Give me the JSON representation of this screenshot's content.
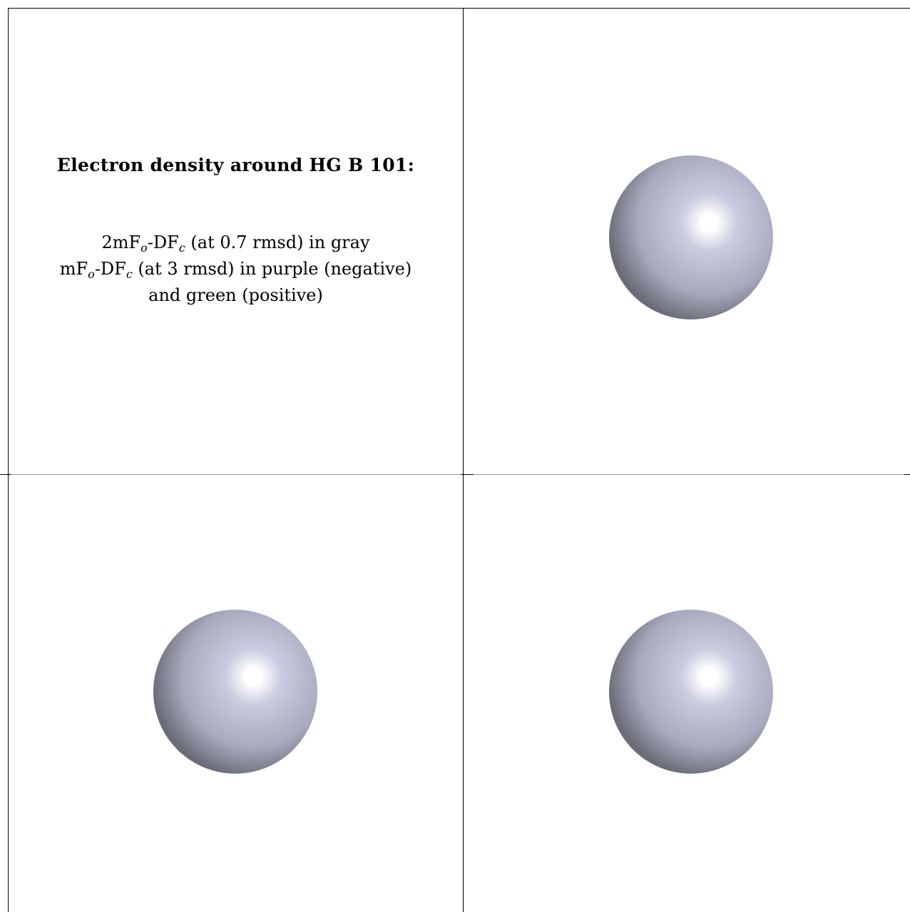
{
  "title": "Electron density around HG B 101:",
  "legend": {
    "line1": {
      "prefix": "2mF",
      "sub1": "o",
      "mid": "-DF",
      "sub2": "c",
      "suffix": " (at 0.7 rmsd) in gray"
    },
    "line2": {
      "prefix": "mF",
      "sub1": "o",
      "mid": "-DF",
      "sub2": "c",
      "suffix": " (at 3 rmsd) in purple (negative)"
    },
    "line3": "and green (positive)"
  },
  "colors": {
    "sphere_highlight": "#ffffff",
    "sphere_light": "#c9cbe0",
    "sphere_mid": "#a7a9bd",
    "sphere_dark": "#6b6c78",
    "divider": "#9a9a9a"
  },
  "views": [
    {
      "name": "view-top-right",
      "object": "sphere"
    },
    {
      "name": "view-bottom-left",
      "object": "sphere"
    },
    {
      "name": "view-bottom-right",
      "object": "sphere"
    }
  ]
}
